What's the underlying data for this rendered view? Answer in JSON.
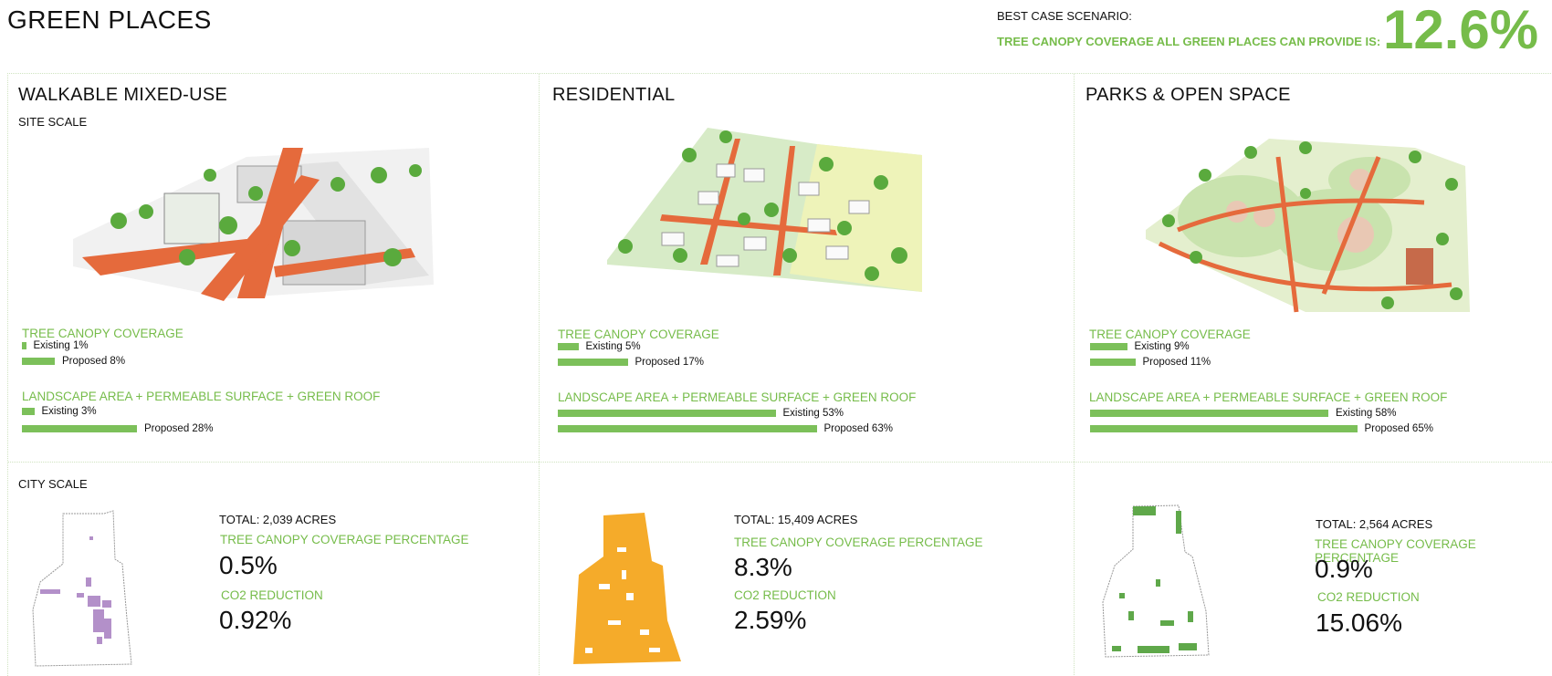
{
  "title": "GREEN PLACES",
  "best_case": {
    "label": "BEST CASE SCENARIO:",
    "sub": "TREE CANOPY COVERAGE ALL GREEN PLACES CAN PROVIDE IS:",
    "value": "12.6%"
  },
  "colors": {
    "accent": "#76bc4a",
    "bar": "#7cc05a",
    "path": "#e56a3c",
    "mixed_map": "#b390c9",
    "res_map": "#f5ab2a",
    "parks_map": "#5fa84a"
  },
  "site_scale_label": "SITE SCALE",
  "city_scale_label": "CITY SCALE",
  "columns": [
    {
      "heading": "WALKABLE MIXED-USE",
      "canopy": {
        "label": "TREE CANOPY COVERAGE",
        "existing_label": "Existing 1%",
        "existing_pct": 1,
        "proposed_label": "Proposed 8%",
        "proposed_pct": 8
      },
      "landscape": {
        "label": "LANDSCAPE AREA + PERMEABLE SURFACE + GREEN ROOF",
        "existing_label": "Existing 3%",
        "existing_pct": 3,
        "proposed_label": "Proposed 28%",
        "proposed_pct": 28
      },
      "city": {
        "total": "TOTAL: 2,039 ACRES",
        "canopy_label": "TREE CANOPY  COVERAGE PERCENTAGE",
        "canopy_value": "0.5%",
        "co2_label": "CO2 REDUCTION",
        "co2_value": "0.92%"
      }
    },
    {
      "heading": "RESIDENTIAL",
      "canopy": {
        "label": "TREE CANOPY COVERAGE",
        "existing_label": "Existing 5%",
        "existing_pct": 5,
        "proposed_label": "Proposed 17%",
        "proposed_pct": 17
      },
      "landscape": {
        "label": "LANDSCAPE AREA + PERMEABLE SURFACE + GREEN ROOF",
        "existing_label": "Existing 53%",
        "existing_pct": 53,
        "proposed_label": "Proposed 63%",
        "proposed_pct": 63
      },
      "city": {
        "total": "TOTAL: 15,409 ACRES",
        "canopy_label": "TREE CANOPY  COVERAGE PERCENTAGE",
        "canopy_value": "8.3%",
        "co2_label": "CO2 REDUCTION",
        "co2_value": "2.59%"
      }
    },
    {
      "heading": "PARKS & OPEN SPACE",
      "canopy": {
        "label": "TREE CANOPY COVERAGE",
        "existing_label": "Existing 9%",
        "existing_pct": 9,
        "proposed_label": "Proposed 11%",
        "proposed_pct": 11
      },
      "landscape": {
        "label": "LANDSCAPE AREA + PERMEABLE SURFACE + GREEN ROOF",
        "existing_label": "Existing 58%",
        "existing_pct": 58,
        "proposed_label": "Proposed 65%",
        "proposed_pct": 65
      },
      "city": {
        "total": "TOTAL: 2,564 ACRES",
        "canopy_label": "TREE CANOPY  COVERAGE PERCENTAGE",
        "canopy_value": "0.9%",
        "co2_label": "CO2 REDUCTION",
        "co2_value": "15.06%"
      }
    }
  ]
}
